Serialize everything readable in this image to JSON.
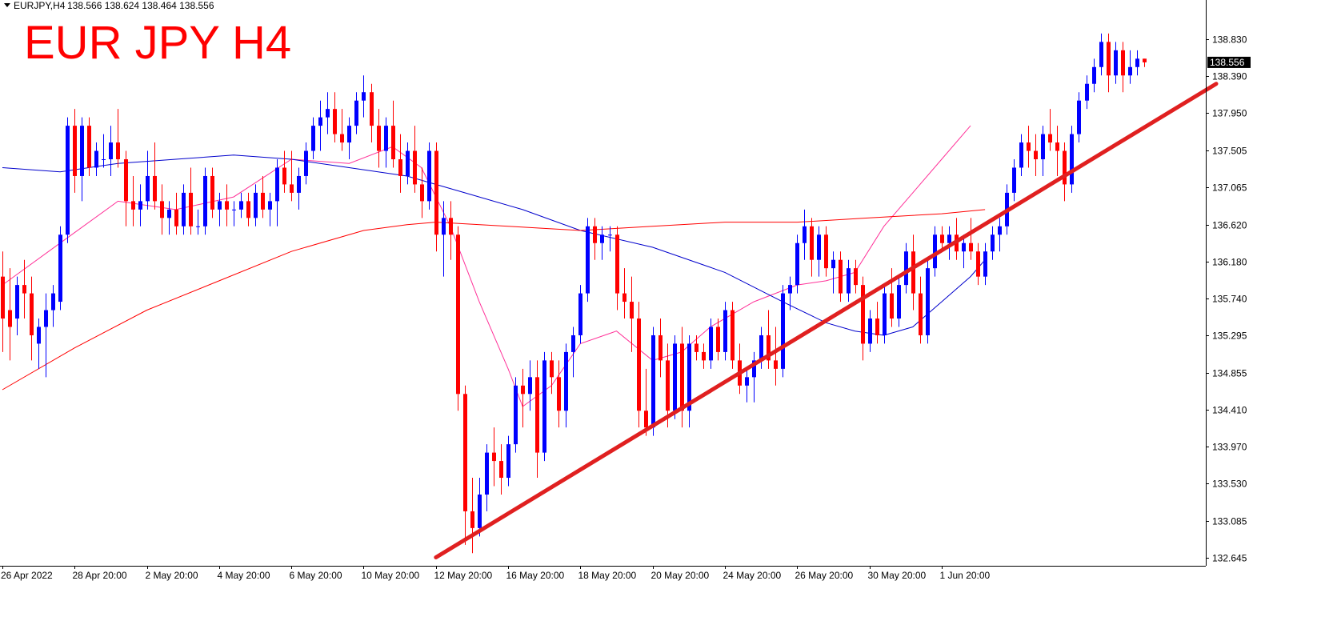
{
  "header": {
    "symbol": "EURJPY,H4",
    "ohlc": "138.566 138.624 138.464 138.556",
    "menu_icon": "triangle-down-icon"
  },
  "title": "EUR JPY H4",
  "price_badge": "138.556",
  "chart_data": {
    "type": "candlestick",
    "symbol": "EURJPY",
    "timeframe": "H4",
    "title": "EUR JPY H4",
    "ylim": [
      132.55,
      139.3
    ],
    "y_ticks": [
      {
        "value": 138.83,
        "label": "138.830"
      },
      {
        "value": 138.39,
        "label": "138.390"
      },
      {
        "value": 137.95,
        "label": "137.950"
      },
      {
        "value": 137.505,
        "label": "137.505"
      },
      {
        "value": 137.065,
        "label": "137.065"
      },
      {
        "value": 136.62,
        "label": "136.620"
      },
      {
        "value": 136.18,
        "label": "136.180"
      },
      {
        "value": 135.74,
        "label": "135.740"
      },
      {
        "value": 135.295,
        "label": "135.295"
      },
      {
        "value": 134.855,
        "label": "134.855"
      },
      {
        "value": 134.41,
        "label": "134.410"
      },
      {
        "value": 133.97,
        "label": "133.970"
      },
      {
        "value": 133.53,
        "label": "133.530"
      },
      {
        "value": 133.085,
        "label": "133.085"
      },
      {
        "value": 132.645,
        "label": "132.645"
      }
    ],
    "x_ticks": [
      {
        "bar": 0,
        "label": "26 Apr 2022"
      },
      {
        "bar": 10,
        "label": "28 Apr 20:00"
      },
      {
        "bar": 20,
        "label": "2 May 20:00"
      },
      {
        "bar": 30,
        "label": "4 May 20:00"
      },
      {
        "bar": 40,
        "label": "6 May 20:00"
      },
      {
        "bar": 50,
        "label": "10 May 20:00"
      },
      {
        "bar": 60,
        "label": "12 May 20:00"
      },
      {
        "bar": 70,
        "label": "16 May 20:00"
      },
      {
        "bar": 80,
        "label": "18 May 20:00"
      },
      {
        "bar": 90,
        "label": "20 May 20:00"
      },
      {
        "bar": 100,
        "label": "24 May 20:00"
      },
      {
        "bar": 110,
        "label": "26 May 20:00"
      },
      {
        "bar": 120,
        "label": "30 May 20:00"
      },
      {
        "bar": 130,
        "label": "1 Jun 20:00"
      }
    ],
    "up_color": "#0000ff",
    "down_color": "#ff0000",
    "candles": [
      [
        136.0,
        136.3,
        135.1,
        135.5
      ],
      [
        135.6,
        136.1,
        135.0,
        135.4
      ],
      [
        135.5,
        136.0,
        135.3,
        135.9
      ],
      [
        135.9,
        136.2,
        135.5,
        135.8
      ],
      [
        135.8,
        136.0,
        135.0,
        135.3
      ],
      [
        135.2,
        135.5,
        134.9,
        135.4
      ],
      [
        135.4,
        135.8,
        134.8,
        135.6
      ],
      [
        135.6,
        135.9,
        135.4,
        135.8
      ],
      [
        135.7,
        136.6,
        135.6,
        136.5
      ],
      [
        136.5,
        137.9,
        136.4,
        137.8
      ],
      [
        137.8,
        138.0,
        137.0,
        137.2
      ],
      [
        137.2,
        137.9,
        136.9,
        137.8
      ],
      [
        137.8,
        137.9,
        137.2,
        137.3
      ],
      [
        137.3,
        137.6,
        137.2,
        137.5
      ],
      [
        137.4,
        137.7,
        137.3,
        137.4
      ],
      [
        137.4,
        137.8,
        137.2,
        137.6
      ],
      [
        137.6,
        138.0,
        137.3,
        137.4
      ],
      [
        137.4,
        137.5,
        136.6,
        136.9
      ],
      [
        136.9,
        137.2,
        136.6,
        136.8
      ],
      [
        136.8,
        137.1,
        136.6,
        136.9
      ],
      [
        136.9,
        137.5,
        136.8,
        137.2
      ],
      [
        137.2,
        137.6,
        136.8,
        136.9
      ],
      [
        136.9,
        137.1,
        136.5,
        136.7
      ],
      [
        136.7,
        136.9,
        136.5,
        136.8
      ],
      [
        136.8,
        137.0,
        136.5,
        136.6
      ],
      [
        136.6,
        137.1,
        136.5,
        137.0
      ],
      [
        137.0,
        137.3,
        136.5,
        136.6
      ],
      [
        136.6,
        136.8,
        136.5,
        136.6
      ],
      [
        136.6,
        137.3,
        136.5,
        137.2
      ],
      [
        137.2,
        137.3,
        136.7,
        136.8
      ],
      [
        136.8,
        137.0,
        136.6,
        136.9
      ],
      [
        136.9,
        137.1,
        136.6,
        136.8
      ],
      [
        136.8,
        136.9,
        136.6,
        136.8
      ],
      [
        136.8,
        137.0,
        136.7,
        136.9
      ],
      [
        136.9,
        137.0,
        136.6,
        136.7
      ],
      [
        136.7,
        137.1,
        136.6,
        137.0
      ],
      [
        137.0,
        137.2,
        136.7,
        136.8
      ],
      [
        136.8,
        137.0,
        136.6,
        136.9
      ],
      [
        136.9,
        137.4,
        136.6,
        137.3
      ],
      [
        137.3,
        137.5,
        137.0,
        137.1
      ],
      [
        137.1,
        137.5,
        136.9,
        137.0
      ],
      [
        137.0,
        137.3,
        136.8,
        137.2
      ],
      [
        137.2,
        137.6,
        137.1,
        137.5
      ],
      [
        137.5,
        137.9,
        137.4,
        137.8
      ],
      [
        137.8,
        138.1,
        137.5,
        137.9
      ],
      [
        137.9,
        138.2,
        137.7,
        138.0
      ],
      [
        138.0,
        138.2,
        137.6,
        137.7
      ],
      [
        137.7,
        138.0,
        137.5,
        137.6
      ],
      [
        137.6,
        137.9,
        137.4,
        137.8
      ],
      [
        137.8,
        138.2,
        137.7,
        138.1
      ],
      [
        138.1,
        138.4,
        137.9,
        138.2
      ],
      [
        138.2,
        138.3,
        137.6,
        137.8
      ],
      [
        137.8,
        138.0,
        137.3,
        137.5
      ],
      [
        137.5,
        137.9,
        137.3,
        137.8
      ],
      [
        137.8,
        138.1,
        137.3,
        137.4
      ],
      [
        137.4,
        137.7,
        137.0,
        137.2
      ],
      [
        137.2,
        137.6,
        137.1,
        137.5
      ],
      [
        137.5,
        137.8,
        137.0,
        137.1
      ],
      [
        137.1,
        137.3,
        136.7,
        136.9
      ],
      [
        136.9,
        137.6,
        136.8,
        137.5
      ],
      [
        137.5,
        137.6,
        136.3,
        136.5
      ],
      [
        136.5,
        136.9,
        136.0,
        136.7
      ],
      [
        136.7,
        136.9,
        136.2,
        136.5
      ],
      [
        136.5,
        136.6,
        134.4,
        134.6
      ],
      [
        134.6,
        134.7,
        132.8,
        133.2
      ],
      [
        133.2,
        133.6,
        132.7,
        133.0
      ],
      [
        133.0,
        133.6,
        132.9,
        133.4
      ],
      [
        133.4,
        134.0,
        133.2,
        133.9
      ],
      [
        133.9,
        134.2,
        133.5,
        133.8
      ],
      [
        133.8,
        134.0,
        133.4,
        133.6
      ],
      [
        133.6,
        134.1,
        133.5,
        134.0
      ],
      [
        134.0,
        134.8,
        133.9,
        134.7
      ],
      [
        134.7,
        134.9,
        134.2,
        134.6
      ],
      [
        134.6,
        135.0,
        134.4,
        134.8
      ],
      [
        134.8,
        135.0,
        133.6,
        133.9
      ],
      [
        133.9,
        135.1,
        133.8,
        135.0
      ],
      [
        135.0,
        135.1,
        134.6,
        134.8
      ],
      [
        134.8,
        135.0,
        134.2,
        134.4
      ],
      [
        134.4,
        135.2,
        134.2,
        135.1
      ],
      [
        135.1,
        135.4,
        134.8,
        135.3
      ],
      [
        135.3,
        135.9,
        135.2,
        135.8
      ],
      [
        135.8,
        136.7,
        135.7,
        136.6
      ],
      [
        136.6,
        136.7,
        136.2,
        136.4
      ],
      [
        136.4,
        136.6,
        136.2,
        136.5
      ],
      [
        136.5,
        136.6,
        136.3,
        136.5
      ],
      [
        136.5,
        136.6,
        135.6,
        135.8
      ],
      [
        135.8,
        136.1,
        135.5,
        135.7
      ],
      [
        135.7,
        136.0,
        135.1,
        135.5
      ],
      [
        135.5,
        135.7,
        134.2,
        134.4
      ],
      [
        134.4,
        134.9,
        134.1,
        134.2
      ],
      [
        134.2,
        135.4,
        134.1,
        135.3
      ],
      [
        135.3,
        135.5,
        134.8,
        135.0
      ],
      [
        135.0,
        135.2,
        134.2,
        134.4
      ],
      [
        134.4,
        135.3,
        134.3,
        135.2
      ],
      [
        135.2,
        135.4,
        134.2,
        134.4
      ],
      [
        134.4,
        135.3,
        134.2,
        135.2
      ],
      [
        135.2,
        135.3,
        135.0,
        135.1
      ],
      [
        135.1,
        135.2,
        134.9,
        135.0
      ],
      [
        135.0,
        135.5,
        134.9,
        135.4
      ],
      [
        135.4,
        135.5,
        135.0,
        135.1
      ],
      [
        135.1,
        135.7,
        135.0,
        135.6
      ],
      [
        135.6,
        135.7,
        134.9,
        135.0
      ],
      [
        135.0,
        135.2,
        134.6,
        134.7
      ],
      [
        134.7,
        134.9,
        134.5,
        134.8
      ],
      [
        134.8,
        135.1,
        134.5,
        135.0
      ],
      [
        135.0,
        135.4,
        134.9,
        135.3
      ],
      [
        135.3,
        135.6,
        134.9,
        135.0
      ],
      [
        135.0,
        135.4,
        134.7,
        134.9
      ],
      [
        134.9,
        135.9,
        134.8,
        135.8
      ],
      [
        135.8,
        136.0,
        135.6,
        135.9
      ],
      [
        135.9,
        136.5,
        135.8,
        136.4
      ],
      [
        136.4,
        136.8,
        136.2,
        136.6
      ],
      [
        136.6,
        136.7,
        136.0,
        136.2
      ],
      [
        136.2,
        136.6,
        136.0,
        136.5
      ],
      [
        136.5,
        136.6,
        136.0,
        136.1
      ],
      [
        136.1,
        136.3,
        135.8,
        136.2
      ],
      [
        136.2,
        136.3,
        135.7,
        135.8
      ],
      [
        135.8,
        136.2,
        135.7,
        136.1
      ],
      [
        136.1,
        136.2,
        135.8,
        135.9
      ],
      [
        135.9,
        136.0,
        135.0,
        135.2
      ],
      [
        135.2,
        135.6,
        135.1,
        135.5
      ],
      [
        135.5,
        135.7,
        135.2,
        135.3
      ],
      [
        135.3,
        135.9,
        135.2,
        135.8
      ],
      [
        135.8,
        136.1,
        135.4,
        135.5
      ],
      [
        135.5,
        136.0,
        135.4,
        135.9
      ],
      [
        135.9,
        136.4,
        135.8,
        136.3
      ],
      [
        136.3,
        136.5,
        135.6,
        135.8
      ],
      [
        135.8,
        136.0,
        135.2,
        135.3
      ],
      [
        135.3,
        136.2,
        135.2,
        136.1
      ],
      [
        136.1,
        136.6,
        136.0,
        136.5
      ],
      [
        136.5,
        136.6,
        136.3,
        136.4
      ],
      [
        136.4,
        136.6,
        136.2,
        136.5
      ],
      [
        136.5,
        136.7,
        136.2,
        136.3
      ],
      [
        136.3,
        136.5,
        136.1,
        136.4
      ],
      [
        136.4,
        136.7,
        136.2,
        136.3
      ],
      [
        136.3,
        136.4,
        135.9,
        136.0
      ],
      [
        136.0,
        136.4,
        135.9,
        136.3
      ],
      [
        136.3,
        136.6,
        136.2,
        136.5
      ],
      [
        136.5,
        136.7,
        136.3,
        136.6
      ],
      [
        136.6,
        137.1,
        136.5,
        137.0
      ],
      [
        137.0,
        137.4,
        136.9,
        137.3
      ],
      [
        137.3,
        137.7,
        137.2,
        137.6
      ],
      [
        137.6,
        137.8,
        137.3,
        137.5
      ],
      [
        137.5,
        137.7,
        137.2,
        137.4
      ],
      [
        137.4,
        137.8,
        137.2,
        137.7
      ],
      [
        137.7,
        138.0,
        137.5,
        137.6
      ],
      [
        137.6,
        137.8,
        137.2,
        137.5
      ],
      [
        137.5,
        137.6,
        136.9,
        137.1
      ],
      [
        137.1,
        137.8,
        137.0,
        137.7
      ],
      [
        137.7,
        138.2,
        137.6,
        138.1
      ],
      [
        138.1,
        138.4,
        138.0,
        138.3
      ],
      [
        138.3,
        138.6,
        138.2,
        138.5
      ],
      [
        138.5,
        138.9,
        138.4,
        138.8
      ],
      [
        138.8,
        138.9,
        138.2,
        138.4
      ],
      [
        138.4,
        138.8,
        138.3,
        138.7
      ],
      [
        138.7,
        138.8,
        138.2,
        138.4
      ],
      [
        138.4,
        138.7,
        138.3,
        138.5
      ],
      [
        138.5,
        138.7,
        138.4,
        138.6
      ],
      [
        138.6,
        138.6,
        138.5,
        138.556
      ]
    ],
    "overlays": [
      {
        "kind": "moving_average",
        "color": "#ff3399",
        "points": [
          [
            0,
            135.9
          ],
          [
            8,
            136.4
          ],
          [
            16,
            136.9
          ],
          [
            24,
            136.8
          ],
          [
            32,
            136.95
          ],
          [
            40,
            137.4
          ],
          [
            48,
            137.35
          ],
          [
            54,
            137.55
          ],
          [
            58,
            137.3
          ],
          [
            62,
            136.6
          ],
          [
            66,
            135.7
          ],
          [
            70,
            134.9
          ],
          [
            72,
            134.45
          ],
          [
            76,
            134.7
          ],
          [
            80,
            135.2
          ],
          [
            85,
            135.35
          ],
          [
            90,
            135.0
          ],
          [
            94,
            135.1
          ],
          [
            98,
            135.4
          ],
          [
            104,
            135.7
          ],
          [
            110,
            135.9
          ],
          [
            114,
            135.95
          ],
          [
            118,
            136.05
          ],
          [
            122,
            136.6
          ],
          [
            126,
            137.0
          ],
          [
            130,
            137.4
          ],
          [
            134,
            137.8
          ]
        ]
      },
      {
        "kind": "moving_average",
        "color": "#0000cc",
        "points": [
          [
            0,
            137.3
          ],
          [
            8,
            137.25
          ],
          [
            16,
            137.35
          ],
          [
            24,
            137.4
          ],
          [
            32,
            137.45
          ],
          [
            40,
            137.4
          ],
          [
            48,
            137.3
          ],
          [
            56,
            137.2
          ],
          [
            64,
            137.0
          ],
          [
            72,
            136.8
          ],
          [
            80,
            136.55
          ],
          [
            90,
            136.35
          ],
          [
            100,
            136.05
          ],
          [
            108,
            135.7
          ],
          [
            114,
            135.45
          ],
          [
            118,
            135.35
          ],
          [
            122,
            135.3
          ],
          [
            126,
            135.4
          ],
          [
            130,
            135.7
          ],
          [
            134,
            136.0
          ],
          [
            136,
            136.2
          ]
        ]
      },
      {
        "kind": "moving_average",
        "color": "#ff0000",
        "points": [
          [
            0,
            134.65
          ],
          [
            10,
            135.15
          ],
          [
            20,
            135.6
          ],
          [
            30,
            135.95
          ],
          [
            40,
            136.3
          ],
          [
            50,
            136.55
          ],
          [
            56,
            136.62
          ],
          [
            60,
            136.65
          ],
          [
            70,
            136.6
          ],
          [
            80,
            136.55
          ],
          [
            90,
            136.6
          ],
          [
            100,
            136.65
          ],
          [
            110,
            136.65
          ],
          [
            120,
            136.7
          ],
          [
            130,
            136.75
          ],
          [
            136,
            136.8
          ]
        ]
      },
      {
        "kind": "trendline",
        "color": "#e02020",
        "points": [
          [
            60,
            132.65
          ],
          [
            168,
            138.3
          ]
        ]
      }
    ]
  }
}
